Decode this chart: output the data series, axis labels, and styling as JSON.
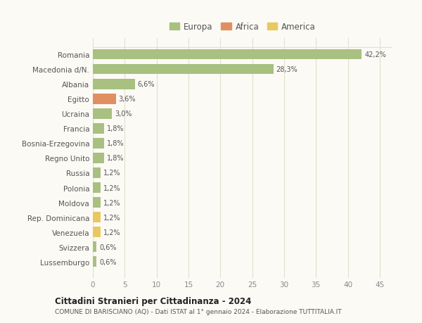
{
  "categories": [
    "Lussemburgo",
    "Svizzera",
    "Venezuela",
    "Rep. Dominicana",
    "Moldova",
    "Polonia",
    "Russia",
    "Regno Unito",
    "Bosnia-Erzegovina",
    "Francia",
    "Ucraina",
    "Egitto",
    "Albania",
    "Macedonia d/N.",
    "Romania"
  ],
  "values": [
    0.6,
    0.6,
    1.2,
    1.2,
    1.2,
    1.2,
    1.2,
    1.8,
    1.8,
    1.8,
    3.0,
    3.6,
    6.6,
    28.3,
    42.2
  ],
  "labels": [
    "0,6%",
    "0,6%",
    "1,2%",
    "1,2%",
    "1,2%",
    "1,2%",
    "1,2%",
    "1,8%",
    "1,8%",
    "1,8%",
    "3,0%",
    "3,6%",
    "6,6%",
    "28,3%",
    "42,2%"
  ],
  "colors": [
    "#a8c080",
    "#a8c080",
    "#e8c860",
    "#e8c860",
    "#a8c080",
    "#a8c080",
    "#a8c080",
    "#a8c080",
    "#a8c080",
    "#a8c080",
    "#a8c080",
    "#e09060",
    "#a8c080",
    "#a8c080",
    "#a8c080"
  ],
  "continents": [
    "Europa",
    "Europa",
    "America",
    "America",
    "Europa",
    "Europa",
    "Europa",
    "Europa",
    "Europa",
    "Europa",
    "Europa",
    "Africa",
    "Europa",
    "Europa",
    "Europa"
  ],
  "legend_labels": [
    "Europa",
    "Africa",
    "America"
  ],
  "legend_colors": [
    "#a8c080",
    "#e09060",
    "#e8c860"
  ],
  "xlim": [
    0,
    47
  ],
  "xticks": [
    0,
    5,
    10,
    15,
    20,
    25,
    30,
    35,
    40,
    45
  ],
  "title": "Cittadini Stranieri per Cittadinanza - 2024",
  "subtitle": "COMUNE DI BARISCIANO (AQ) - Dati ISTAT al 1° gennaio 2024 - Elaborazione TUTTITALIA.IT",
  "background_color": "#fcfaf5",
  "grid_color": "#e0e0d0",
  "bar_height": 0.7
}
